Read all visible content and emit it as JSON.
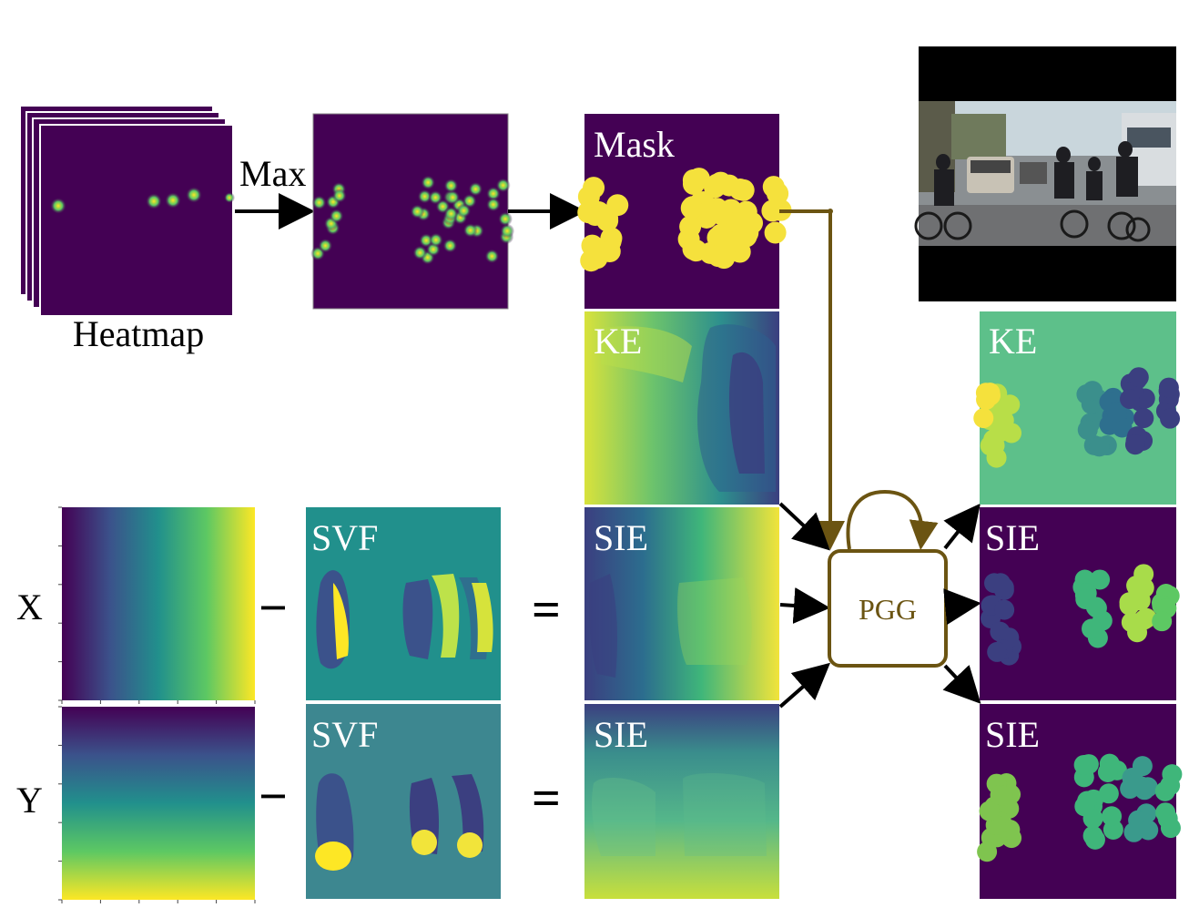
{
  "labels": {
    "max": "Max",
    "heatmap": "Heatmap",
    "mask": "Mask",
    "ke_in": "KE",
    "svf_x": "SVF",
    "svf_y": "SVF",
    "sie_x": "SIE",
    "sie_y": "SIE",
    "x_row": "X",
    "y_row": "Y",
    "pgg": "PGG",
    "ke_out": "KE",
    "sie_out1": "SIE",
    "sie_out2": "SIE"
  },
  "operators": {
    "minus": "−",
    "equals": "="
  },
  "colors": {
    "viridis_dark": "#440154",
    "viridis_blue": "#3b528b",
    "viridis_teal": "#21908c",
    "viridis_green": "#5dc863",
    "viridis_yellow": "#fde725",
    "pgg_gold": "#6b5412"
  }
}
